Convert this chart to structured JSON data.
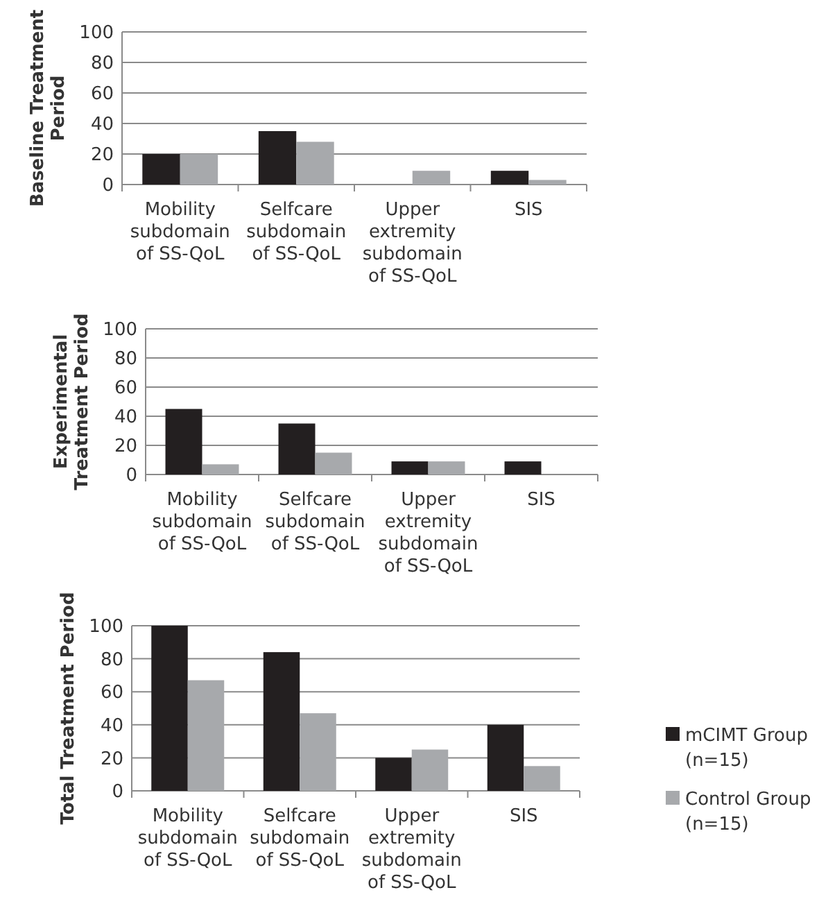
{
  "chart_data": [
    {
      "type": "bar",
      "ylabel": "Baseline Treatment Period",
      "categories": [
        "Mobility subdomain of SS-QoL",
        "Selfcare subdomain of SS-QoL",
        "Upper extremity subdomain of SS-QoL",
        "SIS"
      ],
      "ylim": [
        0,
        100
      ],
      "yticks": [
        0,
        20,
        40,
        60,
        80,
        100
      ],
      "grid": "y",
      "legend": false,
      "series": [
        {
          "color": "#231f20",
          "values": [
            20,
            35,
            0,
            9
          ]
        },
        {
          "color": "#a7a9ac",
          "values": [
            20,
            28,
            9,
            3
          ]
        }
      ]
    },
    {
      "type": "bar",
      "ylabel": "Experimental Treatment Period",
      "categories": [
        "Mobility subdomain of SS-QoL",
        "Selfcare subdomain of SS-QoL",
        "Upper extremity subdomain of SS-QoL",
        "SIS"
      ],
      "ylim": [
        0,
        100
      ],
      "yticks": [
        0,
        20,
        40,
        60,
        80,
        100
      ],
      "grid": "y",
      "legend": false,
      "series": [
        {
          "color": "#231f20",
          "values": [
            45,
            35,
            9,
            9
          ]
        },
        {
          "color": "#a7a9ac",
          "values": [
            7,
            15,
            9,
            0
          ]
        }
      ]
    },
    {
      "type": "bar",
      "ylabel": "Total Treatment Period",
      "categories": [
        "Mobility subdomain of SS-QoL",
        "Selfcare subdomain of SS-QoL",
        "Upper extremity subdomain of SS-QoL",
        "SIS"
      ],
      "ylim": [
        0,
        100
      ],
      "yticks": [
        0,
        20,
        40,
        60,
        80,
        100
      ],
      "grid": "y",
      "legend": "right",
      "series": [
        {
          "name": "mCIMT Group (n=15)",
          "color": "#231f20",
          "values": [
            100,
            84,
            20,
            40
          ]
        },
        {
          "name": "Control Group (n=15)",
          "color": "#a7a9ac",
          "values": [
            67,
            47,
            25,
            15
          ]
        }
      ]
    }
  ]
}
